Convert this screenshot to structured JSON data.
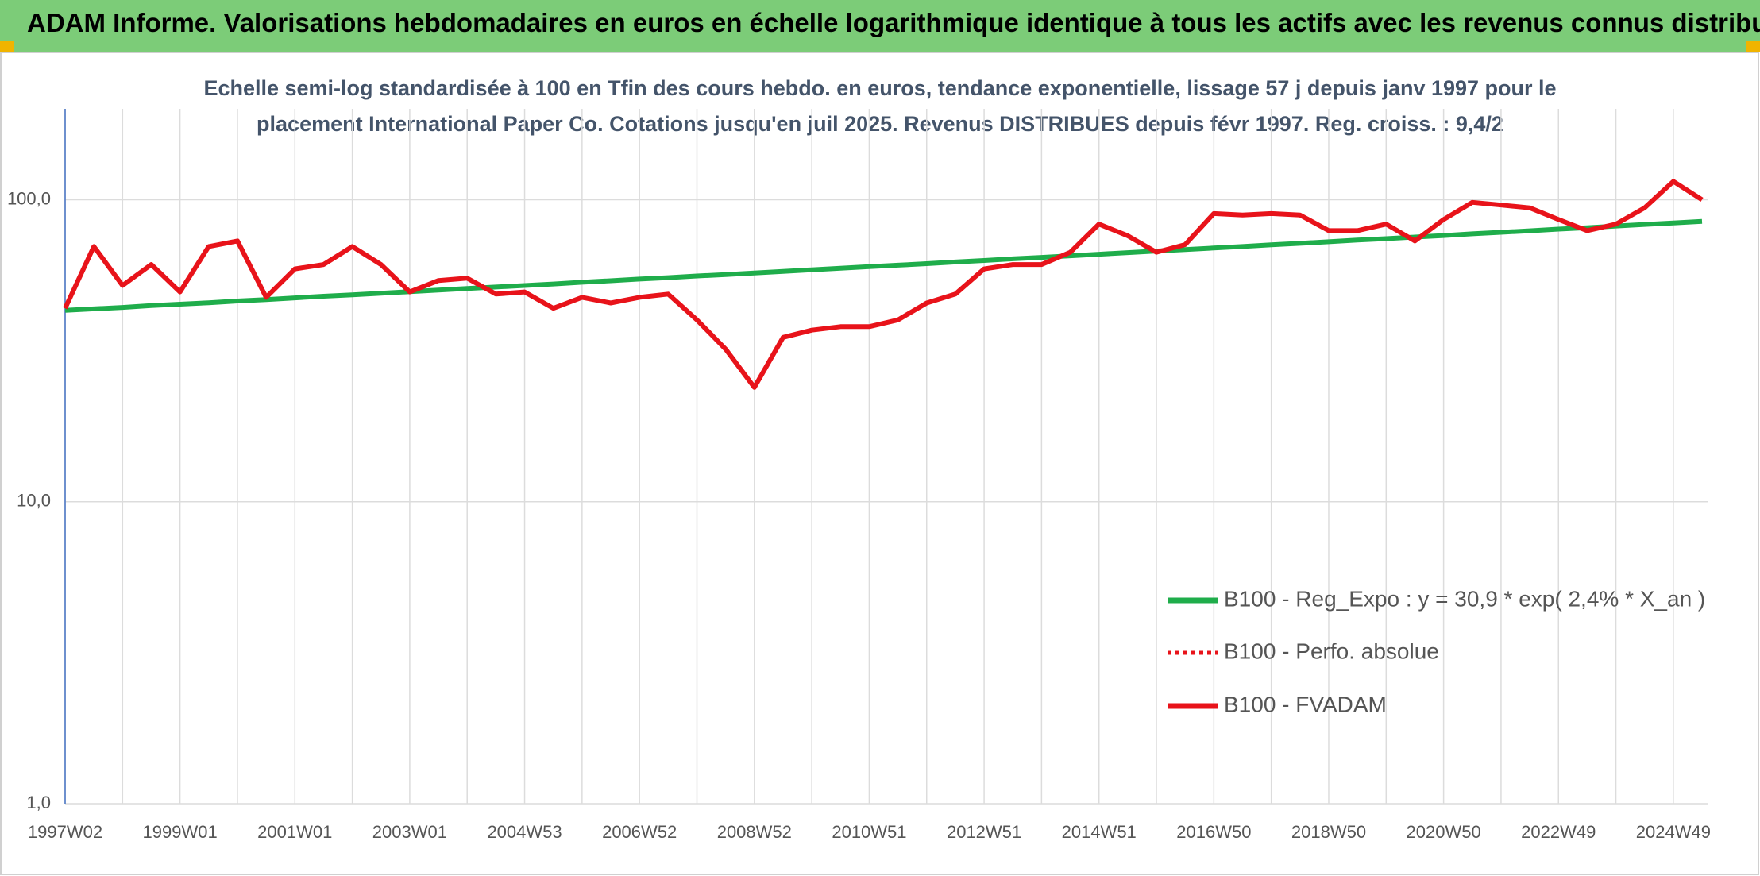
{
  "header": {
    "title": "ADAM Informe. Valorisations hebdomadaires en euros en échelle logarithmique identique à tous les actifs avec les revenus connus distribués"
  },
  "chart_data": {
    "type": "line",
    "subtitle": [
      "Echelle semi-log standardisée à 100 en Tfin des cours hebdo. en euros, tendance exponentielle, lissage 57 j depuis janv 1997 pour le",
      "placement International Paper Co. Cotations jusqu'en juil 2025. Revenus DISTRIBUES depuis févr 1997. Reg. croiss. : 9,4/2"
    ],
    "categories": [
      "1997W02",
      null,
      null,
      null,
      "1999W01",
      null,
      null,
      null,
      "2001W01",
      null,
      null,
      null,
      "2003W01",
      null,
      null,
      null,
      "2004W53",
      null,
      null,
      null,
      "2006W52",
      null,
      null,
      null,
      "2008W52",
      null,
      null,
      null,
      "2010W51",
      null,
      null,
      null,
      "2012W51",
      null,
      null,
      null,
      "2014W51",
      null,
      null,
      null,
      "2016W50",
      null,
      null,
      null,
      "2018W50",
      null,
      null,
      null,
      "2020W50",
      null,
      null,
      null,
      "2022W49",
      null,
      null,
      null,
      "2024W49",
      null
    ],
    "series": [
      {
        "name": "B100 - Reg_Expo : y = 30,9 * exp( 2,4% *  X_an )",
        "color": "#1fad4b",
        "style": "solid",
        "values": [
          43.0,
          43.5,
          44.0,
          44.6,
          45.1,
          45.6,
          46.2,
          46.7,
          47.3,
          47.9,
          48.4,
          49.0,
          49.6,
          50.2,
          50.8,
          51.4,
          52.0,
          52.6,
          53.3,
          53.9,
          54.6,
          55.2,
          55.9,
          56.5,
          57.2,
          57.9,
          58.6,
          59.3,
          60.0,
          60.7,
          61.4,
          62.2,
          62.9,
          63.7,
          64.4,
          65.2,
          66.0,
          66.8,
          67.6,
          68.4,
          69.2,
          70.0,
          70.9,
          71.7,
          72.6,
          73.5,
          74.3,
          75.2,
          76.1,
          77.1,
          78.0,
          78.9,
          79.9,
          80.8,
          81.8,
          82.8,
          83.8,
          84.8
        ]
      },
      {
        "name": "B100 - Perfo. absolue",
        "color": "#e8131a",
        "style": "dotted",
        "values": [
          43.7,
          70,
          52,
          61,
          49.5,
          70,
          73,
          47.5,
          59,
          61,
          70,
          61,
          49.5,
          54,
          55,
          48.7,
          49.5,
          43.7,
          47.5,
          45.5,
          47.5,
          48.7,
          40,
          32,
          23.9,
          35,
          37,
          38,
          38,
          40,
          45.5,
          48.7,
          59,
          61,
          61,
          67,
          83,
          76,
          67,
          71,
          90,
          89,
          90,
          89,
          79,
          79,
          83,
          73,
          86,
          98,
          96,
          94,
          86,
          79,
          83,
          94,
          115,
          100
        ]
      },
      {
        "name": "B100 - FVADAM",
        "color": "#e8131a",
        "style": "solid",
        "values": [
          43.7,
          70,
          52,
          61,
          49.5,
          70,
          73,
          47.5,
          59,
          61,
          70,
          61,
          49.5,
          54,
          55,
          48.7,
          49.5,
          43.7,
          47.5,
          45.5,
          47.5,
          48.7,
          40,
          32,
          23.9,
          35,
          37,
          38,
          38,
          40,
          45.5,
          48.7,
          59,
          61,
          61,
          67,
          83,
          76,
          67,
          71,
          90,
          89,
          90,
          89,
          79,
          79,
          83,
          73,
          86,
          98,
          96,
          94,
          86,
          79,
          83,
          94,
          115,
          100
        ]
      }
    ],
    "ylim": [
      1,
      200
    ],
    "log_y": true,
    "grid": true,
    "yticks": [
      {
        "value": 1,
        "label": "1,0"
      },
      {
        "value": 10,
        "label": "10,0"
      },
      {
        "value": 100,
        "label": "100,0"
      }
    ]
  }
}
